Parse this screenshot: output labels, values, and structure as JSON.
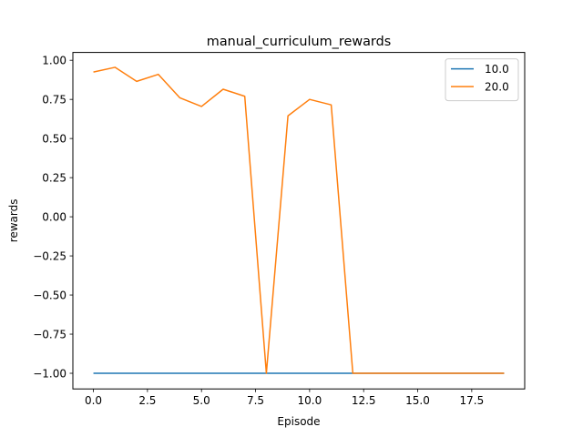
{
  "chart_data": {
    "type": "line",
    "title": "manual_curriculum_rewards",
    "xlabel": "Episode",
    "ylabel": "rewards",
    "xlim": [
      -0.95,
      19.95
    ],
    "ylim": [
      -1.1,
      1.05
    ],
    "xticks": [
      0.0,
      2.5,
      5.0,
      7.5,
      10.0,
      12.5,
      15.0,
      17.5
    ],
    "xtick_labels": [
      "0.0",
      "2.5",
      "5.0",
      "7.5",
      "10.0",
      "12.5",
      "15.0",
      "17.5"
    ],
    "yticks": [
      -1.0,
      -0.75,
      -0.5,
      -0.25,
      0.0,
      0.25,
      0.5,
      0.75,
      1.0
    ],
    "ytick_labels": [
      "−1.00",
      "−0.75",
      "−0.50",
      "−0.25",
      "0.00",
      "0.25",
      "0.50",
      "0.75",
      "1.00"
    ],
    "grid": false,
    "legend_position": "top-right",
    "x": [
      0,
      1,
      2,
      3,
      4,
      5,
      6,
      7,
      8,
      9,
      10,
      11,
      12,
      13,
      14,
      15,
      16,
      17,
      18,
      19
    ],
    "series": [
      {
        "name": "10.0",
        "color": "#1f77b4",
        "values": [
          -1,
          -1,
          -1,
          -1,
          -1,
          -1,
          -1,
          -1,
          -1,
          -1,
          -1,
          -1,
          -1,
          -1,
          -1,
          -1,
          -1,
          -1,
          -1,
          -1
        ]
      },
      {
        "name": "20.0",
        "color": "#ff7f0e",
        "values": [
          0.925,
          0.955,
          0.865,
          0.91,
          0.76,
          0.705,
          0.815,
          0.77,
          -1.0,
          0.645,
          0.75,
          0.715,
          -1.0,
          -1.0,
          -1.0,
          -1.0,
          -1.0,
          -1.0,
          -1.0,
          -1.0
        ]
      }
    ]
  }
}
